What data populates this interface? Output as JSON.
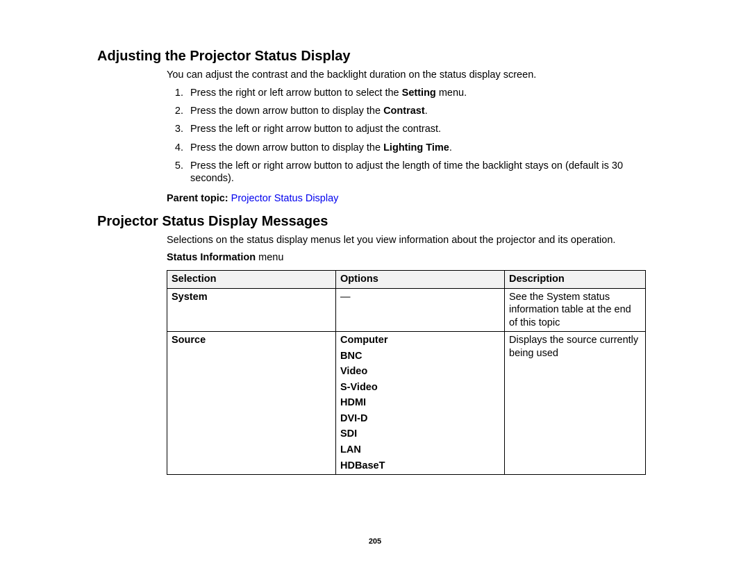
{
  "section1": {
    "heading": "Adjusting the Projector Status Display",
    "intro": "You can adjust the contrast and the backlight duration on the status display screen.",
    "steps": [
      {
        "pre": "Press the right or left arrow button to select the ",
        "bold": "Setting",
        "post": " menu."
      },
      {
        "pre": "Press the down arrow button to display the ",
        "bold": "Contrast",
        "post": "."
      },
      {
        "pre": "Press the left or right arrow button to adjust the contrast.",
        "bold": "",
        "post": ""
      },
      {
        "pre": "Press the down arrow button to display the ",
        "bold": "Lighting Time",
        "post": "."
      },
      {
        "pre": "Press the left or right arrow button to adjust the length of time the backlight stays on (default is 30 seconds).",
        "bold": "",
        "post": ""
      }
    ],
    "parentTopicLabel": "Parent topic: ",
    "parentTopicLink": "Projector Status Display"
  },
  "section2": {
    "heading": "Projector Status Display Messages",
    "intro": "Selections on the status display menus let you view information about the projector and its operation.",
    "menuLabelBold": "Status Information",
    "menuLabelRest": " menu",
    "table": {
      "headers": [
        "Selection",
        "Options",
        "Description"
      ],
      "rows": [
        {
          "selection": "System",
          "options": [
            "—"
          ],
          "optionsBold": false,
          "description": "See the System status information table at the end of this topic"
        },
        {
          "selection": "Source",
          "options": [
            "Computer",
            "BNC",
            "Video",
            "S-Video",
            "HDMI",
            "DVI-D",
            "SDI",
            "LAN",
            "HDBaseT"
          ],
          "optionsBold": true,
          "description": "Displays the source currently being used"
        }
      ]
    }
  },
  "pageNumber": "205",
  "colors": {
    "background": "#ffffff",
    "text": "#000000",
    "link": "#0000ee",
    "tableHeaderBg": "#f2f2f2",
    "tableBorder": "#000000"
  }
}
